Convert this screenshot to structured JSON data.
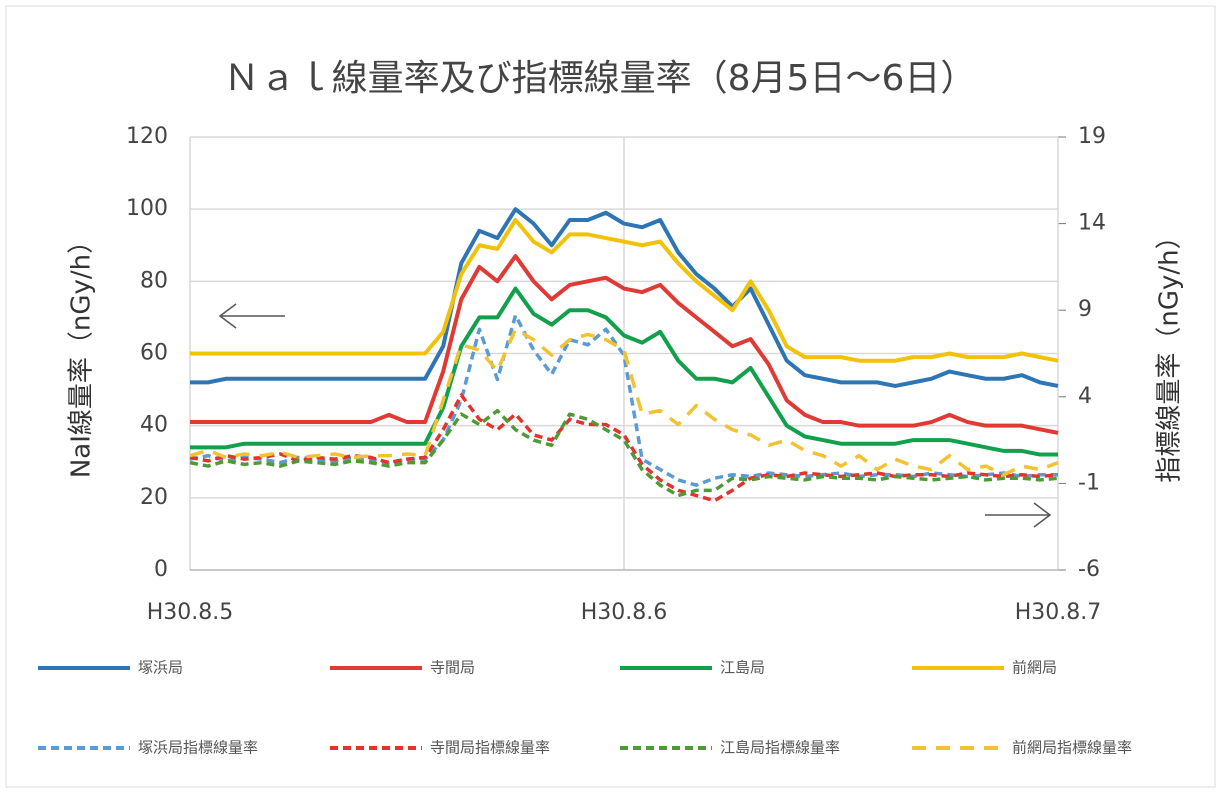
{
  "chart_data": {
    "type": "line",
    "title": "Ｎａｌ線量率及び指標線量率（8月5日～6日）",
    "y_label": "NaI線量率（nGy/h）",
    "y2_label": "指標線量率（nGy/h）",
    "xlim": [
      0,
      48
    ],
    "xticks": [
      {
        "value": 0,
        "label": "H30.8.5"
      },
      {
        "value": 24,
        "label": "H30.8.6"
      },
      {
        "value": 48,
        "label": "H30.8.7"
      }
    ],
    "ylim": [
      0,
      120
    ],
    "yticks": [
      0,
      20,
      40,
      60,
      80,
      100,
      120
    ],
    "y2lim": [
      -6,
      19
    ],
    "y2ticks": [
      -6,
      -1,
      4,
      9,
      14,
      19
    ],
    "grid": true,
    "xgrid": true,
    "legend": "bottom",
    "x": [
      0,
      1,
      2,
      3,
      4,
      5,
      6,
      7,
      8,
      9,
      10,
      11,
      12,
      13,
      14,
      15,
      16,
      17,
      18,
      19,
      20,
      21,
      22,
      23,
      24,
      25,
      26,
      27,
      28,
      29,
      30,
      31,
      32,
      33,
      34,
      35,
      36,
      37,
      38,
      39,
      40,
      41,
      42,
      43,
      44,
      45,
      46,
      47,
      48
    ],
    "series": [
      {
        "name": "塚浜局",
        "color": "#2e75b6",
        "line_style": "solid",
        "values": [
          52,
          52,
          53,
          53,
          53,
          53,
          53,
          53,
          53,
          53,
          53,
          53,
          53,
          53,
          62,
          85,
          94,
          92,
          100,
          96,
          90,
          97,
          97,
          99,
          96,
          95,
          97,
          88,
          82,
          78,
          73,
          78,
          68,
          58,
          54,
          53,
          52,
          52,
          52,
          51,
          52,
          53,
          55,
          54,
          53,
          53,
          54,
          52,
          51
        ]
      },
      {
        "name": "寺間局",
        "color": "#e03a34",
        "line_style": "solid",
        "values": [
          41,
          41,
          41,
          41,
          41,
          41,
          41,
          41,
          41,
          41,
          41,
          43,
          41,
          41,
          55,
          75,
          84,
          80,
          87,
          80,
          75,
          79,
          80,
          81,
          78,
          77,
          79,
          74,
          70,
          66,
          62,
          64,
          57,
          47,
          43,
          41,
          41,
          40,
          40,
          40,
          40,
          41,
          43,
          41,
          40,
          40,
          40,
          39,
          38
        ]
      },
      {
        "name": "江島局",
        "color": "#12a04c",
        "line_style": "solid",
        "values": [
          34,
          34,
          34,
          35,
          35,
          35,
          35,
          35,
          35,
          35,
          35,
          35,
          35,
          35,
          45,
          62,
          70,
          70,
          78,
          71,
          68,
          72,
          72,
          70,
          65,
          63,
          66,
          58,
          53,
          53,
          52,
          56,
          48,
          40,
          37,
          36,
          35,
          35,
          35,
          35,
          36,
          36,
          36,
          35,
          34,
          33,
          33,
          32,
          32
        ]
      },
      {
        "name": "前網局",
        "color": "#f2c20a",
        "line_style": "solid",
        "values": [
          60,
          60,
          60,
          60,
          60,
          60,
          60,
          60,
          60,
          60,
          60,
          60,
          60,
          60,
          66,
          82,
          90,
          89,
          97,
          91,
          88,
          93,
          93,
          92,
          91,
          90,
          91,
          85,
          80,
          76,
          72,
          80,
          72,
          62,
          59,
          59,
          59,
          58,
          58,
          58,
          59,
          59,
          60,
          59,
          59,
          59,
          60,
          59,
          58
        ]
      },
      {
        "name": "塚浜局指標線量率",
        "color": "#5b9bd5",
        "line_style": "dashed",
        "axis": "y2",
        "values": [
          0.4,
          0.6,
          0.3,
          0.5,
          0.4,
          0.2,
          0.5,
          0.4,
          0.3,
          0.5,
          0.4,
          0.2,
          0.4,
          0.4,
          1.5,
          3.8,
          7.9,
          5.0,
          8.7,
          6.7,
          5.3,
          7.3,
          7.0,
          7.9,
          6.4,
          0.4,
          -0.2,
          -0.8,
          -1.1,
          -0.7,
          -0.5,
          -0.6,
          -0.4,
          -0.5,
          -0.6,
          -0.5,
          -0.4,
          -0.6,
          -0.5,
          -0.5,
          -0.6,
          -0.4,
          -0.5,
          -0.6,
          -0.5,
          -0.4,
          -0.6,
          -0.5,
          -0.5
        ]
      },
      {
        "name": "寺間局指標線量率",
        "color": "#e5322d",
        "line_style": "dashed",
        "axis": "y2",
        "values": [
          0.5,
          0.3,
          0.6,
          0.4,
          0.5,
          0.7,
          0.3,
          0.5,
          0.4,
          0.6,
          0.5,
          0.2,
          0.4,
          0.5,
          2.1,
          4.1,
          2.7,
          2.1,
          3.0,
          1.8,
          1.5,
          2.7,
          2.4,
          2.4,
          1.8,
          0.1,
          -0.8,
          -1.4,
          -1.7,
          -2.0,
          -1.4,
          -0.7,
          -0.5,
          -0.6,
          -0.4,
          -0.5,
          -0.6,
          -0.5,
          -0.4,
          -0.6,
          -0.5,
          -0.5,
          -0.6,
          -0.4,
          -0.5,
          -0.6,
          -0.5,
          -0.6,
          -0.5
        ]
      },
      {
        "name": "江島局指標線量率",
        "color": "#4e9a36",
        "line_style": "dashed",
        "axis": "y2",
        "values": [
          0.2,
          0.0,
          0.3,
          0.1,
          0.2,
          0.0,
          0.3,
          0.2,
          0.1,
          0.3,
          0.2,
          0.0,
          0.2,
          0.2,
          1.5,
          3.0,
          2.4,
          3.2,
          2.1,
          1.5,
          1.2,
          3.0,
          2.7,
          2.1,
          1.5,
          -0.2,
          -1.1,
          -1.7,
          -1.4,
          -1.4,
          -0.7,
          -0.8,
          -0.6,
          -0.7,
          -0.8,
          -0.6,
          -0.7,
          -0.7,
          -0.8,
          -0.6,
          -0.7,
          -0.8,
          -0.7,
          -0.6,
          -0.8,
          -0.7,
          -0.7,
          -0.8,
          -0.7
        ]
      },
      {
        "name": "前網局指標線量率",
        "color": "#f2c230",
        "line_style": "dashed",
        "axis": "y2",
        "values": [
          0.6,
          0.9,
          0.5,
          0.7,
          0.6,
          0.8,
          0.5,
          0.6,
          0.7,
          0.5,
          0.6,
          0.6,
          0.7,
          0.6,
          3.8,
          7.0,
          6.7,
          5.5,
          7.9,
          7.3,
          6.4,
          7.3,
          7.6,
          7.3,
          6.7,
          3.0,
          3.2,
          2.4,
          3.5,
          2.7,
          2.1,
          1.8,
          1.2,
          1.5,
          0.9,
          0.6,
          0.0,
          0.6,
          -0.2,
          0.4,
          0.0,
          -0.2,
          0.6,
          -0.2,
          0.0,
          -0.5,
          0.0,
          -0.2,
          0.2
        ]
      }
    ]
  }
}
